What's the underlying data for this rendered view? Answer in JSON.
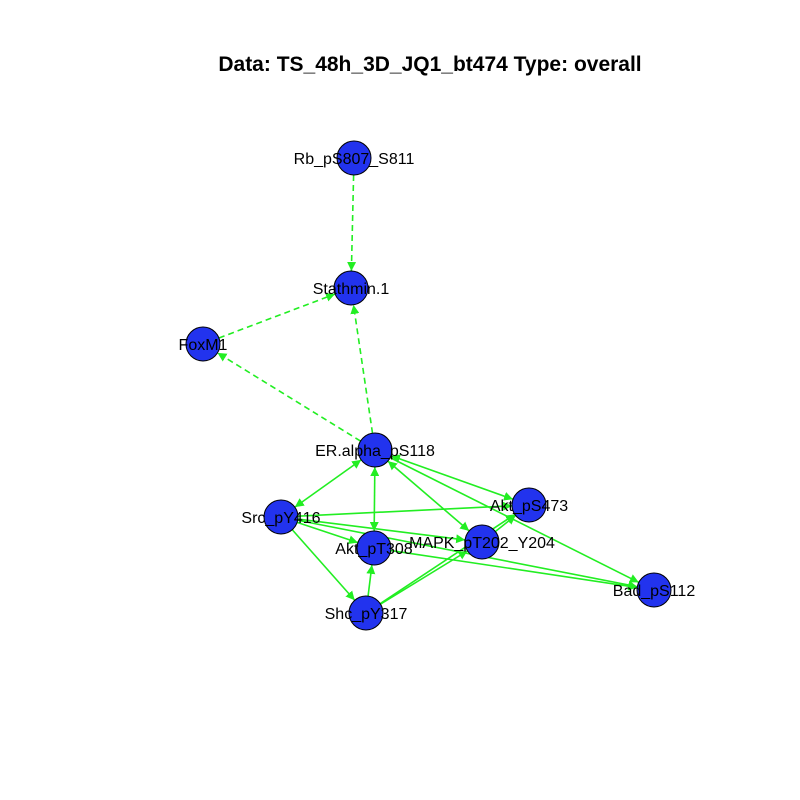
{
  "title": "Data: TS_48h_3D_JQ1_bt474 Type: overall",
  "colors": {
    "node_fill": "#2233ee",
    "node_stroke": "#000000",
    "edge": "#22ee22",
    "background": "#ffffff"
  },
  "nodes": [
    {
      "id": "rb",
      "label": "Rb_pS807_S811"
    },
    {
      "id": "stathmin",
      "label": "Stathmin.1"
    },
    {
      "id": "foxm1",
      "label": "FoxM1"
    },
    {
      "id": "era",
      "label": "ER.alpha_pS118"
    },
    {
      "id": "akt473",
      "label": "Akt_pS473"
    },
    {
      "id": "src",
      "label": "Src_pY416"
    },
    {
      "id": "akt308",
      "label": "Akt_pT308"
    },
    {
      "id": "mapk",
      "label": "MAPK_pT202_Y204"
    },
    {
      "id": "bad",
      "label": "Bad_pS112"
    },
    {
      "id": "shc",
      "label": "Shc_pY317"
    }
  ],
  "edges": [
    {
      "from": "rb",
      "to": "stathmin",
      "style": "dashed",
      "arrows": "to"
    },
    {
      "from": "foxm1",
      "to": "stathmin",
      "style": "dashed",
      "arrows": "to"
    },
    {
      "from": "era",
      "to": "stathmin",
      "style": "dashed",
      "arrows": "to"
    },
    {
      "from": "era",
      "to": "foxm1",
      "style": "dashed",
      "arrows": "to"
    },
    {
      "from": "era",
      "to": "src",
      "style": "solid",
      "arrows": "both"
    },
    {
      "from": "era",
      "to": "akt308",
      "style": "solid",
      "arrows": "both"
    },
    {
      "from": "era",
      "to": "mapk",
      "style": "solid",
      "arrows": "both"
    },
    {
      "from": "era",
      "to": "akt473",
      "style": "solid",
      "arrows": "both"
    },
    {
      "from": "era",
      "to": "bad",
      "style": "solid",
      "arrows": "to"
    },
    {
      "from": "src",
      "to": "akt473",
      "style": "solid",
      "arrows": "to"
    },
    {
      "from": "src",
      "to": "akt308",
      "style": "solid",
      "arrows": "to"
    },
    {
      "from": "src",
      "to": "mapk",
      "style": "solid",
      "arrows": "to"
    },
    {
      "from": "src",
      "to": "bad",
      "style": "solid",
      "arrows": "to"
    },
    {
      "from": "src",
      "to": "shc",
      "style": "solid",
      "arrows": "to"
    },
    {
      "from": "akt308",
      "to": "bad",
      "style": "solid",
      "arrows": "to"
    },
    {
      "from": "mapk",
      "to": "akt473",
      "style": "solid",
      "arrows": "to"
    },
    {
      "from": "shc",
      "to": "akt308",
      "style": "solid",
      "arrows": "to"
    },
    {
      "from": "shc",
      "to": "mapk",
      "style": "solid",
      "arrows": "to"
    },
    {
      "from": "shc",
      "to": "akt473",
      "style": "solid",
      "arrows": "to"
    }
  ]
}
